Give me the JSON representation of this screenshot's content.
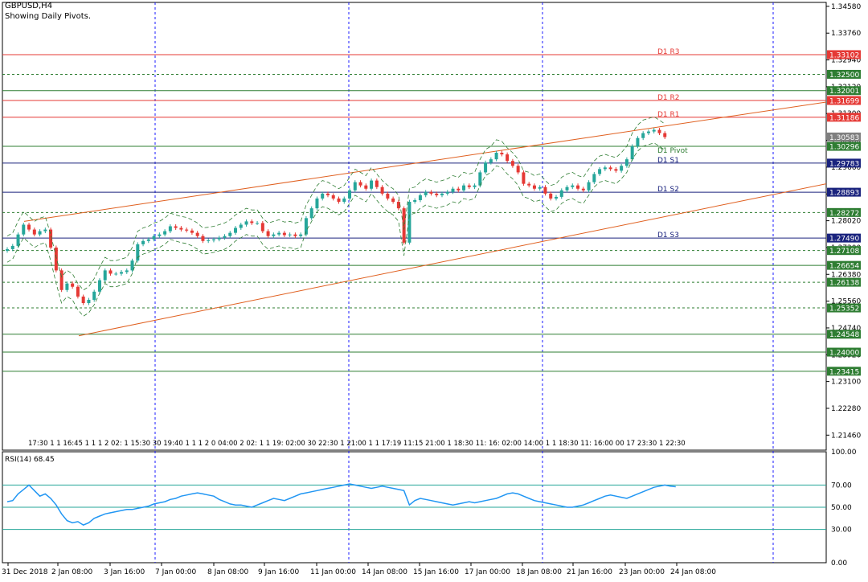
{
  "header": {
    "symbol_line": "GBPUSD,H4",
    "pivot_note": "Showing Daily Pivots."
  },
  "colors": {
    "bull": "#26a69a",
    "bear": "#e53935",
    "pivot_resistance": "#e53935",
    "pivot_support": "#1a237e",
    "pivot_mid": "#2e7d32",
    "trendline": "#e06020",
    "grid_v": "#1a1aff",
    "rsi_line": "#2196f3",
    "highlight_price": "#7f7f7f"
  },
  "chart_data": [
    {
      "type": "candlestick",
      "title": "GBPUSD,H4",
      "subtitle": "Showing Daily Pivots.",
      "ylim": [
        1.21,
        1.347
      ],
      "y_ticks": [
        "1.34580",
        "1.33760",
        "1.32940",
        "1.32120",
        "1.31300",
        "1.30480",
        "1.29660",
        "1.28840",
        "1.28020",
        "1.27200",
        "1.26380",
        "1.25560",
        "1.24740",
        "1.23920",
        "1.23100",
        "1.22280",
        "1.21460"
      ],
      "pivot_lines": [
        {
          "name": "D1 R3",
          "value": 1.33102,
          "price_label": "1.33102",
          "kind": "resistance"
        },
        {
          "name": "D1 R2",
          "value": 1.31699,
          "price_label": "1.31699",
          "kind": "resistance"
        },
        {
          "name": "D1 R1",
          "value": 1.31186,
          "price_label": "1.31186",
          "kind": "resistance"
        },
        {
          "name": "D1 Pivot",
          "value": 1.30296,
          "price_label": "1.30296",
          "kind": "mid"
        },
        {
          "name": "D1 S1",
          "value": 1.29783,
          "price_label": "1.29783",
          "kind": "support"
        },
        {
          "name": "D1 S2",
          "value": 1.28893,
          "price_label": "1.28893",
          "kind": "support"
        },
        {
          "name": "D1 S3",
          "value": 1.2749,
          "price_label": "1.27490",
          "kind": "support"
        }
      ],
      "level_lines": [
        {
          "value": 1.325,
          "price_label": "1.32500",
          "style": "dash"
        },
        {
          "value": 1.32001,
          "price_label": "1.32001",
          "style": "solid"
        },
        {
          "value": 1.28272,
          "price_label": "1.28272",
          "style": "dash"
        },
        {
          "value": 1.27108,
          "price_label": "1.27108",
          "style": "dash"
        },
        {
          "value": 1.26654,
          "price_label": "1.26654",
          "style": "solid"
        },
        {
          "value": 1.26138,
          "price_label": "1.26138",
          "style": "dash"
        },
        {
          "value": 1.25352,
          "price_label": "1.25352",
          "style": "dash"
        },
        {
          "value": 1.24548,
          "price_label": "1.24548",
          "style": "solid"
        },
        {
          "value": 1.24,
          "price_label": "1.24000",
          "style": "solid"
        },
        {
          "value": 1.23415,
          "price_label": "1.23415",
          "style": "solid"
        }
      ],
      "current_price": {
        "value": 1.30583,
        "price_label": "1.30583"
      },
      "x_labels": [
        "31 Dec 2018",
        "2 Jan 08:00",
        "3 Jan 16:00",
        "7 Jan 00:00",
        "8 Jan 08:00",
        "9 Jan 16:00",
        "11 Jan 00:00",
        "14 Jan 08:00",
        "15 Jan 16:00",
        "17 Jan 00:00",
        "18 Jan 08:00",
        "21 Jan 16:00",
        "23 Jan 00:00",
        "24 Jan 08:00"
      ],
      "session_strip": "17:30 1 1 16:45 1 1 1 2 02: 1 15:30 30  19:40 1 1 1 2 0 04:00 2 02: 1 1 19: 02:00 30 22:30  1 21:00 1 1 17:19 11:15 21:00 1 18:30 11: 16: 02:00 14:00  1 1 18:30 11: 16:00 00  17 23:30 1 22:30",
      "close_series": [
        1.2715,
        1.2725,
        1.276,
        1.279,
        1.2775,
        1.276,
        1.277,
        1.2775,
        1.272,
        1.265,
        1.259,
        1.261,
        1.26,
        1.257,
        1.255,
        1.256,
        1.2585,
        1.262,
        1.265,
        1.264,
        1.264,
        1.2645,
        1.265,
        1.268,
        1.273,
        1.274,
        1.2745,
        1.2755,
        1.276,
        1.277,
        1.2785,
        1.278,
        1.2775,
        1.2772,
        1.2765,
        1.2755,
        1.274,
        1.2742,
        1.2745,
        1.275,
        1.2755,
        1.2765,
        1.278,
        1.279,
        1.28,
        1.2795,
        1.2795,
        1.277,
        1.2755,
        1.276,
        1.2765,
        1.2758,
        1.276,
        1.2755,
        1.276,
        1.281,
        1.284,
        1.287,
        1.2885,
        1.288,
        1.287,
        1.286,
        1.287,
        1.2895,
        1.292,
        1.291,
        1.29,
        1.2925,
        1.2905,
        1.2885,
        1.287,
        1.286,
        1.284,
        1.2735,
        1.286,
        1.2865,
        1.288,
        1.289,
        1.2885,
        1.288,
        1.2885,
        1.289,
        1.29,
        1.2895,
        1.291,
        1.2905,
        1.291,
        1.295,
        1.298,
        1.299,
        1.301,
        1.3005,
        1.2985,
        1.297,
        1.295,
        1.2915,
        1.291,
        1.29,
        1.2905,
        1.2885,
        1.287,
        1.2875,
        1.2895,
        1.2905,
        1.291,
        1.29,
        1.2895,
        1.292,
        1.2945,
        1.296,
        1.2965,
        1.296,
        1.2955,
        1.297,
        1.299,
        1.303,
        1.3055,
        1.307,
        1.3075,
        1.308,
        1.307,
        1.3058
      ]
    },
    {
      "type": "line",
      "title": "RSI(14) 68.45",
      "ylim": [
        0,
        100
      ],
      "y_ticks": [
        "100.00",
        "70.00",
        "50.00",
        "30.00",
        "0.00"
      ],
      "levels": [
        70,
        50,
        30
      ],
      "series": [
        {
          "name": "RSI(14)",
          "last": 68.45,
          "values": [
            55,
            56,
            62,
            66,
            70,
            65,
            60,
            62,
            58,
            52,
            44,
            38,
            36,
            37,
            34,
            36,
            40,
            42,
            44,
            45,
            46,
            47,
            48,
            48,
            49,
            50,
            51,
            53,
            54,
            55,
            57,
            58,
            60,
            61,
            62,
            63,
            62,
            61,
            60,
            57,
            55,
            53,
            52,
            52,
            51,
            50,
            52,
            54,
            56,
            58,
            57,
            56,
            58,
            60,
            62,
            63,
            64,
            65,
            66,
            67,
            68,
            69,
            70,
            71,
            70,
            69,
            68,
            67,
            68,
            69,
            68,
            67,
            66,
            65,
            52,
            56,
            58,
            57,
            56,
            55,
            54,
            53,
            52,
            53,
            54,
            55,
            54,
            55,
            56,
            57,
            58,
            60,
            62,
            63,
            62,
            60,
            58,
            56,
            55,
            54,
            53,
            52,
            51,
            50,
            50,
            51,
            52,
            54,
            56,
            58,
            60,
            61,
            60,
            59,
            58,
            60,
            62,
            64,
            66,
            68,
            69,
            70,
            69,
            68.45
          ]
        }
      ]
    }
  ]
}
